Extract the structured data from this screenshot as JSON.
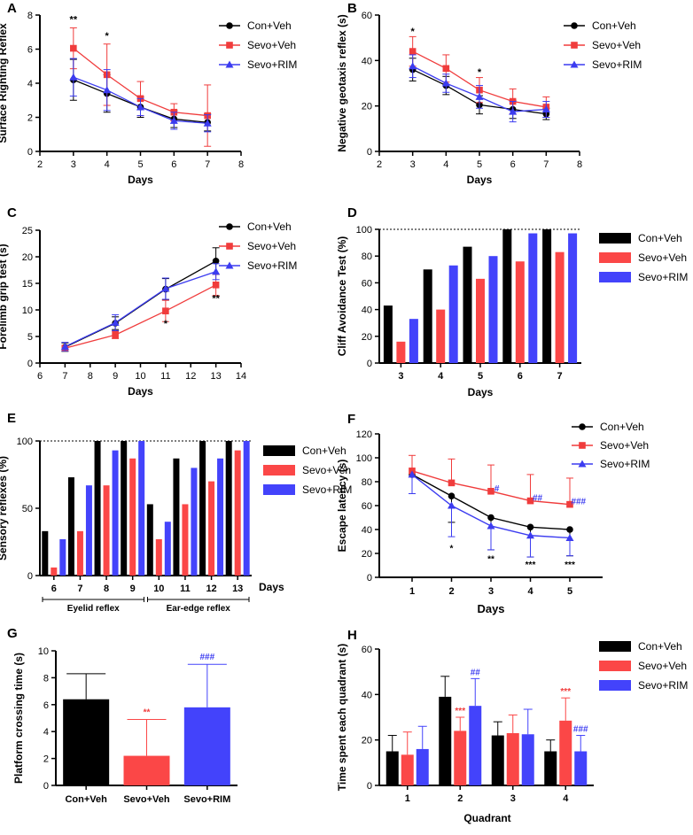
{
  "colors": {
    "con": "#000000",
    "sevo": "#f03c3c",
    "rim": "#3c3cf0",
    "sevo_bar": "#fb4747",
    "rim_bar": "#4343fb"
  },
  "legend": {
    "con": "Con+Veh",
    "sevo": "Sevo+Veh",
    "rim": "Sevo+RIM"
  },
  "chart_data": [
    {
      "id": "A",
      "panel_label": "A",
      "type": "line",
      "xlabel": "Days",
      "ylabel": "Surface Righting Reflex",
      "xlim": [
        2,
        8
      ],
      "xticks": [
        2,
        3,
        4,
        5,
        6,
        7,
        8
      ],
      "ylim": [
        0,
        8
      ],
      "yticks": [
        0,
        2,
        4,
        6,
        8
      ],
      "x": [
        3,
        4,
        5,
        6,
        7
      ],
      "series": [
        {
          "key": "con",
          "name": "Con+Veh",
          "marker": "circle",
          "values": [
            4.2,
            3.4,
            2.6,
            1.9,
            1.7
          ],
          "err": [
            1.2,
            1.1,
            0.6,
            0.5,
            0.5
          ]
        },
        {
          "key": "sevo",
          "name": "Sevo+Veh",
          "marker": "square",
          "values": [
            6.05,
            4.5,
            3.1,
            2.3,
            2.1
          ],
          "err": [
            1.2,
            1.8,
            1.0,
            0.5,
            1.8
          ]
        },
        {
          "key": "rim",
          "name": "Sevo+RIM",
          "marker": "triangle",
          "values": [
            4.35,
            3.6,
            2.6,
            1.8,
            1.65
          ],
          "err": [
            1.1,
            1.2,
            0.5,
            0.5,
            0.5
          ]
        }
      ],
      "annotations": [
        {
          "x": 3,
          "y": 7.55,
          "text": "**"
        },
        {
          "x": 4,
          "y": 6.6,
          "text": "*"
        }
      ]
    },
    {
      "id": "B",
      "panel_label": "B",
      "type": "line",
      "xlabel": "Days",
      "ylabel": "Negative geotaxis reflex (s)",
      "xlim": [
        2,
        8
      ],
      "xticks": [
        2,
        3,
        4,
        5,
        6,
        7,
        8
      ],
      "ylim": [
        0,
        60
      ],
      "yticks": [
        0,
        20,
        40,
        60
      ],
      "x": [
        3,
        4,
        5,
        6,
        7
      ],
      "series": [
        {
          "key": "con",
          "name": "Con+Veh",
          "marker": "circle",
          "values": [
            36,
            29,
            20.5,
            18.5,
            16.5
          ],
          "err": [
            5,
            4,
            4,
            4,
            2.5
          ]
        },
        {
          "key": "sevo",
          "name": "Sevo+Veh",
          "marker": "square",
          "values": [
            44,
            36.5,
            27,
            22,
            19.5
          ],
          "err": [
            6.5,
            6,
            5.5,
            5.5,
            4.5
          ]
        },
        {
          "key": "rim",
          "name": "Sevo+RIM",
          "marker": "triangle",
          "values": [
            37.5,
            30,
            24,
            17.5,
            18.5
          ],
          "err": [
            5,
            4,
            5,
            4.5,
            3.5
          ]
        }
      ],
      "annotations": [
        {
          "x": 3,
          "y": 51.5,
          "text": "*"
        },
        {
          "x": 5,
          "y": 33.5,
          "text": "*"
        }
      ]
    },
    {
      "id": "C",
      "panel_label": "C",
      "type": "line",
      "xlabel": "Days",
      "ylabel": "Forelimb grip test (s)",
      "xlim": [
        6,
        14
      ],
      "xticks": [
        6,
        7,
        8,
        9,
        10,
        11,
        12,
        13,
        14
      ],
      "ylim": [
        0,
        25
      ],
      "yticks": [
        0,
        5,
        10,
        15,
        20,
        25
      ],
      "x": [
        7,
        9,
        11,
        13
      ],
      "series": [
        {
          "key": "con",
          "name": "Con+Veh",
          "marker": "circle",
          "values": [
            3.0,
            7.5,
            13.9,
            19.2
          ],
          "err": [
            0.8,
            1.2,
            2.0,
            2.5
          ]
        },
        {
          "key": "sevo",
          "name": "Sevo+Veh",
          "marker": "square",
          "values": [
            2.8,
            5.3,
            9.8,
            14.7
          ],
          "err": [
            0.5,
            0.7,
            2.0,
            2.0
          ]
        },
        {
          "key": "rim",
          "name": "Sevo+RIM",
          "marker": "triangle",
          "values": [
            3.1,
            7.6,
            14.0,
            17.2
          ],
          "err": [
            0.8,
            1.5,
            2.0,
            1.5
          ]
        }
      ],
      "annotations": [
        {
          "x": 11,
          "y": 6.8,
          "text": "*"
        },
        {
          "x": 13,
          "y": 11.6,
          "text": "**"
        }
      ]
    },
    {
      "id": "D",
      "panel_label": "D",
      "type": "bar",
      "xlabel": "Days",
      "ylabel": "Cliff Avoidance Test (%)",
      "categories": [
        "3",
        "4",
        "5",
        "6",
        "7"
      ],
      "ylim": [
        0,
        100
      ],
      "yticks": [
        0,
        20,
        40,
        60,
        80,
        100
      ],
      "reference_line": 100,
      "series": [
        {
          "key": "con",
          "name": "Con+Veh",
          "values": [
            43,
            70,
            87,
            100,
            100
          ]
        },
        {
          "key": "sevo",
          "name": "Sevo+Veh",
          "values": [
            16,
            40,
            63,
            76,
            83
          ]
        },
        {
          "key": "rim",
          "name": "Sevo+RIM",
          "values": [
            33,
            73,
            80,
            97,
            97
          ]
        }
      ]
    },
    {
      "id": "E",
      "panel_label": "E",
      "type": "bar",
      "xlabel": "Days",
      "ylabel": "Sensory reflexes (%)",
      "categories": [
        "6",
        "7",
        "8",
        "9",
        "10",
        "11",
        "12",
        "13"
      ],
      "ylim": [
        0,
        100
      ],
      "yticks": [
        0,
        50,
        100
      ],
      "reference_line": 100,
      "groups": [
        {
          "label": "Eyelid reflex",
          "from": 0,
          "to": 3
        },
        {
          "label": "Ear-edge reflex",
          "from": 4,
          "to": 7
        }
      ],
      "series": [
        {
          "key": "con",
          "name": "Con+Veh",
          "values": [
            33,
            73,
            100,
            100,
            53,
            87,
            100,
            100
          ]
        },
        {
          "key": "sevo",
          "name": "Sevo+Veh",
          "values": [
            6,
            33,
            67,
            87,
            27,
            53,
            70,
            93
          ]
        },
        {
          "key": "rim",
          "name": "Sevo+RIM",
          "values": [
            27,
            67,
            93,
            100,
            40,
            80,
            87,
            100
          ]
        }
      ]
    },
    {
      "id": "F",
      "panel_label": "F",
      "type": "line",
      "xlabel": "Days",
      "ylabel": "Escape latency (s)",
      "xticks": [
        1,
        2,
        3,
        4,
        5
      ],
      "ylim": [
        0,
        120
      ],
      "yticks": [
        0,
        20,
        40,
        60,
        80,
        100,
        120
      ],
      "x": [
        1,
        2,
        3,
        4,
        5
      ],
      "series": [
        {
          "key": "con",
          "name": "Con+Veh",
          "marker": "circle",
          "values": [
            86,
            68,
            50,
            42,
            40
          ],
          "err": [
            16,
            22,
            27,
            25,
            22
          ],
          "err_dir": "down"
        },
        {
          "key": "sevo",
          "name": "Sevo+Veh",
          "marker": "square",
          "values": [
            89,
            79,
            72,
            64,
            61
          ],
          "err": [
            13,
            20,
            22,
            22,
            22
          ],
          "err_dir": "up"
        },
        {
          "key": "rim",
          "name": "Sevo+RIM",
          "marker": "triangle",
          "values": [
            86,
            60,
            43,
            35,
            33
          ],
          "err": [
            16,
            26,
            20,
            18,
            15
          ],
          "err_dir": "down"
        }
      ],
      "annotations": [
        {
          "x": 2,
          "y": 22,
          "text": "*",
          "color": "#000000"
        },
        {
          "x": 3,
          "y": 13,
          "text": "**",
          "color": "#000000"
        },
        {
          "x": 4,
          "y": 8,
          "text": "***",
          "color": "#000000"
        },
        {
          "x": 5,
          "y": 8,
          "text": "***",
          "color": "#000000"
        },
        {
          "x": 3.15,
          "y": 72,
          "text": "#",
          "color": "#3c3cf0"
        },
        {
          "x": 4.18,
          "y": 64,
          "text": "##",
          "color": "#3c3cf0"
        },
        {
          "x": 5.22,
          "y": 61,
          "text": "###",
          "color": "#3c3cf0"
        }
      ]
    },
    {
      "id": "G",
      "panel_label": "G",
      "type": "bar",
      "xlabel": "",
      "ylabel": "Platform crossing time (s)",
      "categories": [
        "Con+Veh",
        "Sevo+Veh",
        "Sevo+RIM"
      ],
      "ylim": [
        0,
        10
      ],
      "yticks": [
        0,
        2,
        4,
        6,
        8,
        10
      ],
      "values": [
        6.4,
        2.2,
        5.8
      ],
      "err": [
        1.9,
        2.7,
        3.2
      ],
      "annotations": [
        {
          "index": 1,
          "text": "**",
          "color": "#f03c3c"
        },
        {
          "index": 2,
          "text": "###",
          "color": "#3c3cf0"
        }
      ]
    },
    {
      "id": "H",
      "panel_label": "H",
      "type": "bar",
      "xlabel": "Quadrant",
      "ylabel": "Time spent each quadrant (s)",
      "categories": [
        "1",
        "2",
        "3",
        "4"
      ],
      "ylim": [
        0,
        60
      ],
      "yticks": [
        0,
        20,
        40,
        60
      ],
      "series": [
        {
          "key": "con",
          "name": "Con+Veh",
          "values": [
            15,
            39,
            22,
            15
          ],
          "err": [
            7,
            9,
            6,
            5
          ]
        },
        {
          "key": "sevo",
          "name": "Sevo+Veh",
          "values": [
            13.5,
            24,
            23,
            28.5
          ],
          "err": [
            10,
            6,
            8,
            10
          ]
        },
        {
          "key": "rim",
          "name": "Sevo+RIM",
          "values": [
            16,
            35,
            22.5,
            15
          ],
          "err": [
            10,
            12,
            11,
            7
          ]
        }
      ],
      "annotations": [
        {
          "cat": 1,
          "series": 1,
          "text": "***",
          "color": "#f03c3c"
        },
        {
          "cat": 1,
          "series": 2,
          "text": "##",
          "color": "#3c3cf0"
        },
        {
          "cat": 3,
          "series": 1,
          "text": "***",
          "color": "#f03c3c"
        },
        {
          "cat": 3,
          "series": 2,
          "text": "###",
          "color": "#3c3cf0"
        }
      ]
    }
  ]
}
